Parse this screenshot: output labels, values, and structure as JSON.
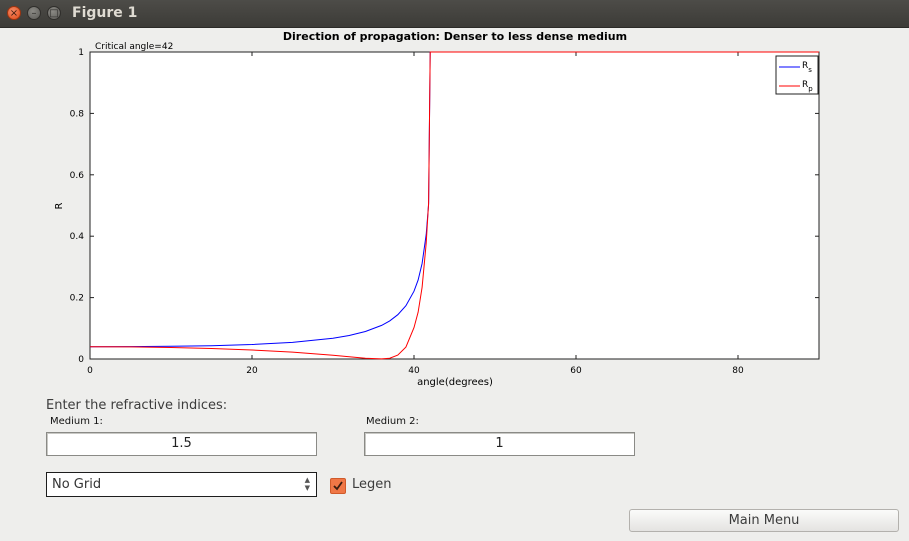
{
  "window": {
    "title": "Figure 1"
  },
  "chart_data": {
    "type": "line",
    "title": "Direction of propagation: Denser to less dense medium",
    "annotation": "Critical angle=42",
    "xlabel": "angle(degrees)",
    "ylabel": "R",
    "xlim": [
      0,
      90
    ],
    "ylim": [
      0,
      1
    ],
    "xticks": [
      0,
      20,
      40,
      60,
      80
    ],
    "xtick_labels": [
      "0",
      "20",
      "40",
      "60",
      "80"
    ],
    "yticks": [
      0,
      0.2,
      0.4,
      0.6,
      0.8,
      1
    ],
    "ytick_labels": [
      "0",
      "0.2",
      "0.4",
      "0.6",
      "0.8",
      "1"
    ],
    "grid": false,
    "legend_position": "top-right",
    "legend": [
      {
        "base": "R",
        "sub": "s",
        "color": "#0000ff"
      },
      {
        "base": "R",
        "sub": "p",
        "color": "#ff0000"
      }
    ],
    "series": [
      {
        "name": "Rs",
        "color": "#0000ff",
        "x": [
          0,
          5,
          10,
          15,
          20,
          25,
          30,
          32,
          34,
          36,
          37,
          38,
          39,
          40,
          40.5,
          41,
          41.5,
          41.8,
          42,
          45,
          50,
          60,
          70,
          80,
          90
        ],
        "y": [
          0.04,
          0.0403,
          0.0413,
          0.0434,
          0.0472,
          0.0541,
          0.0674,
          0.0765,
          0.0895,
          0.1093,
          0.124,
          0.1443,
          0.1736,
          0.2207,
          0.257,
          0.3111,
          0.4054,
          0.5039,
          1,
          1,
          1,
          1,
          1,
          1,
          1
        ]
      },
      {
        "name": "Rp",
        "color": "#ff0000",
        "x": [
          0,
          5,
          10,
          15,
          20,
          25,
          30,
          32,
          34,
          36,
          37,
          38,
          39,
          40,
          40.5,
          41,
          41.5,
          41.8,
          42,
          45,
          50,
          60,
          70,
          80,
          90
        ],
        "y": [
          0.04,
          0.0394,
          0.0375,
          0.0343,
          0.0294,
          0.0224,
          0.0122,
          0.0073,
          0.0025,
          0.0002,
          0.0026,
          0.0126,
          0.0386,
          0.1024,
          0.1521,
          0.2334,
          0.3776,
          0.508,
          1,
          1,
          1,
          1,
          1,
          1,
          1
        ]
      }
    ]
  },
  "controls": {
    "prompt": "Enter the refractive indices:",
    "medium1_label": "Medium 1:",
    "medium1_value": "1.5",
    "medium2_label": "Medium 2:",
    "medium2_value": "1",
    "grid_select_value": "No Grid",
    "legend_checkbox_label": "Legen",
    "legend_checked": true,
    "main_menu_label": "Main Menu"
  }
}
